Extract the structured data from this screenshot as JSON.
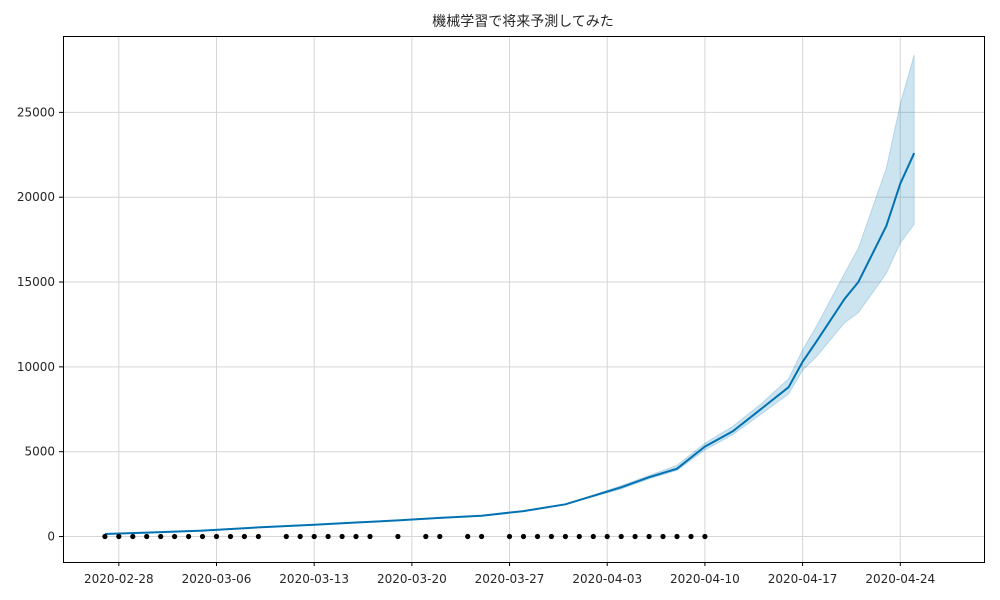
{
  "colors": {
    "forecast_line": "#0072B2",
    "interval_fill": "#0072B2",
    "actual_points": "#000000",
    "grid": "#d6d6d6"
  },
  "chart_data": {
    "type": "line",
    "title": "機械学習で将来予測してみた",
    "xlabel": "",
    "ylabel": "",
    "x_axis_type": "date",
    "xlim": [
      "2020-02-24",
      "2020-04-30"
    ],
    "ylim": [
      -1500,
      29500
    ],
    "x_ticks": [
      "2020-02-28",
      "2020-03-06",
      "2020-03-13",
      "2020-03-20",
      "2020-03-27",
      "2020-04-03",
      "2020-04-10",
      "2020-04-17",
      "2020-04-24"
    ],
    "y_ticks": [
      0,
      5000,
      10000,
      15000,
      20000,
      25000
    ],
    "grid": true,
    "series": [
      {
        "kind": "observed_points",
        "x": [
          "2020-02-27",
          "2020-02-28",
          "2020-02-29",
          "2020-03-01",
          "2020-03-02",
          "2020-03-03",
          "2020-03-04",
          "2020-03-05",
          "2020-03-06",
          "2020-03-07",
          "2020-03-08",
          "2020-03-09",
          "2020-03-11",
          "2020-03-12",
          "2020-03-13",
          "2020-03-14",
          "2020-03-15",
          "2020-03-16",
          "2020-03-17",
          "2020-03-19",
          "2020-03-21",
          "2020-03-22",
          "2020-03-24",
          "2020-03-25",
          "2020-03-27",
          "2020-03-28",
          "2020-03-29",
          "2020-03-30",
          "2020-03-31",
          "2020-04-01",
          "2020-04-02",
          "2020-04-03",
          "2020-04-04",
          "2020-04-05",
          "2020-04-06",
          "2020-04-07",
          "2020-04-08",
          "2020-04-09",
          "2020-04-10"
        ],
        "y": [
          0,
          0,
          0,
          0,
          0,
          0,
          0,
          0,
          0,
          0,
          0,
          0,
          0,
          0,
          0,
          0,
          0,
          0,
          0,
          0,
          0,
          0,
          0,
          0,
          0,
          0,
          0,
          0,
          0,
          0,
          0,
          0,
          0,
          0,
          0,
          0,
          0,
          0,
          0
        ]
      },
      {
        "kind": "forecast",
        "x": [
          "2020-02-27",
          "2020-03-01",
          "2020-03-05",
          "2020-03-09",
          "2020-03-13",
          "2020-03-16",
          "2020-03-19",
          "2020-03-22",
          "2020-03-25",
          "2020-03-28",
          "2020-03-31",
          "2020-04-02",
          "2020-04-04",
          "2020-04-06",
          "2020-04-08",
          "2020-04-10",
          "2020-04-12",
          "2020-04-14",
          "2020-04-16",
          "2020-04-17",
          "2020-04-18",
          "2020-04-20",
          "2020-04-21",
          "2020-04-23",
          "2020-04-24",
          "2020-04-25"
        ],
        "y": [
          150,
          230,
          350,
          540,
          700,
          830,
          950,
          1100,
          1230,
          1500,
          1900,
          2400,
          2900,
          3500,
          4000,
          5300,
          6200,
          7500,
          8800,
          10300,
          11500,
          14000,
          15000,
          18300,
          20800,
          22600
        ],
        "lower": [
          150,
          230,
          350,
          540,
          700,
          830,
          950,
          1100,
          1230,
          1500,
          1900,
          2350,
          2800,
          3400,
          3900,
          5100,
          6000,
          7200,
          8400,
          9800,
          10600,
          12600,
          13200,
          15500,
          17300,
          18400
        ],
        "upper": [
          150,
          230,
          350,
          540,
          700,
          830,
          950,
          1100,
          1230,
          1500,
          1900,
          2450,
          3000,
          3600,
          4200,
          5500,
          6500,
          7800,
          9300,
          11000,
          12400,
          15500,
          17000,
          21700,
          25500,
          28400
        ]
      }
    ]
  }
}
